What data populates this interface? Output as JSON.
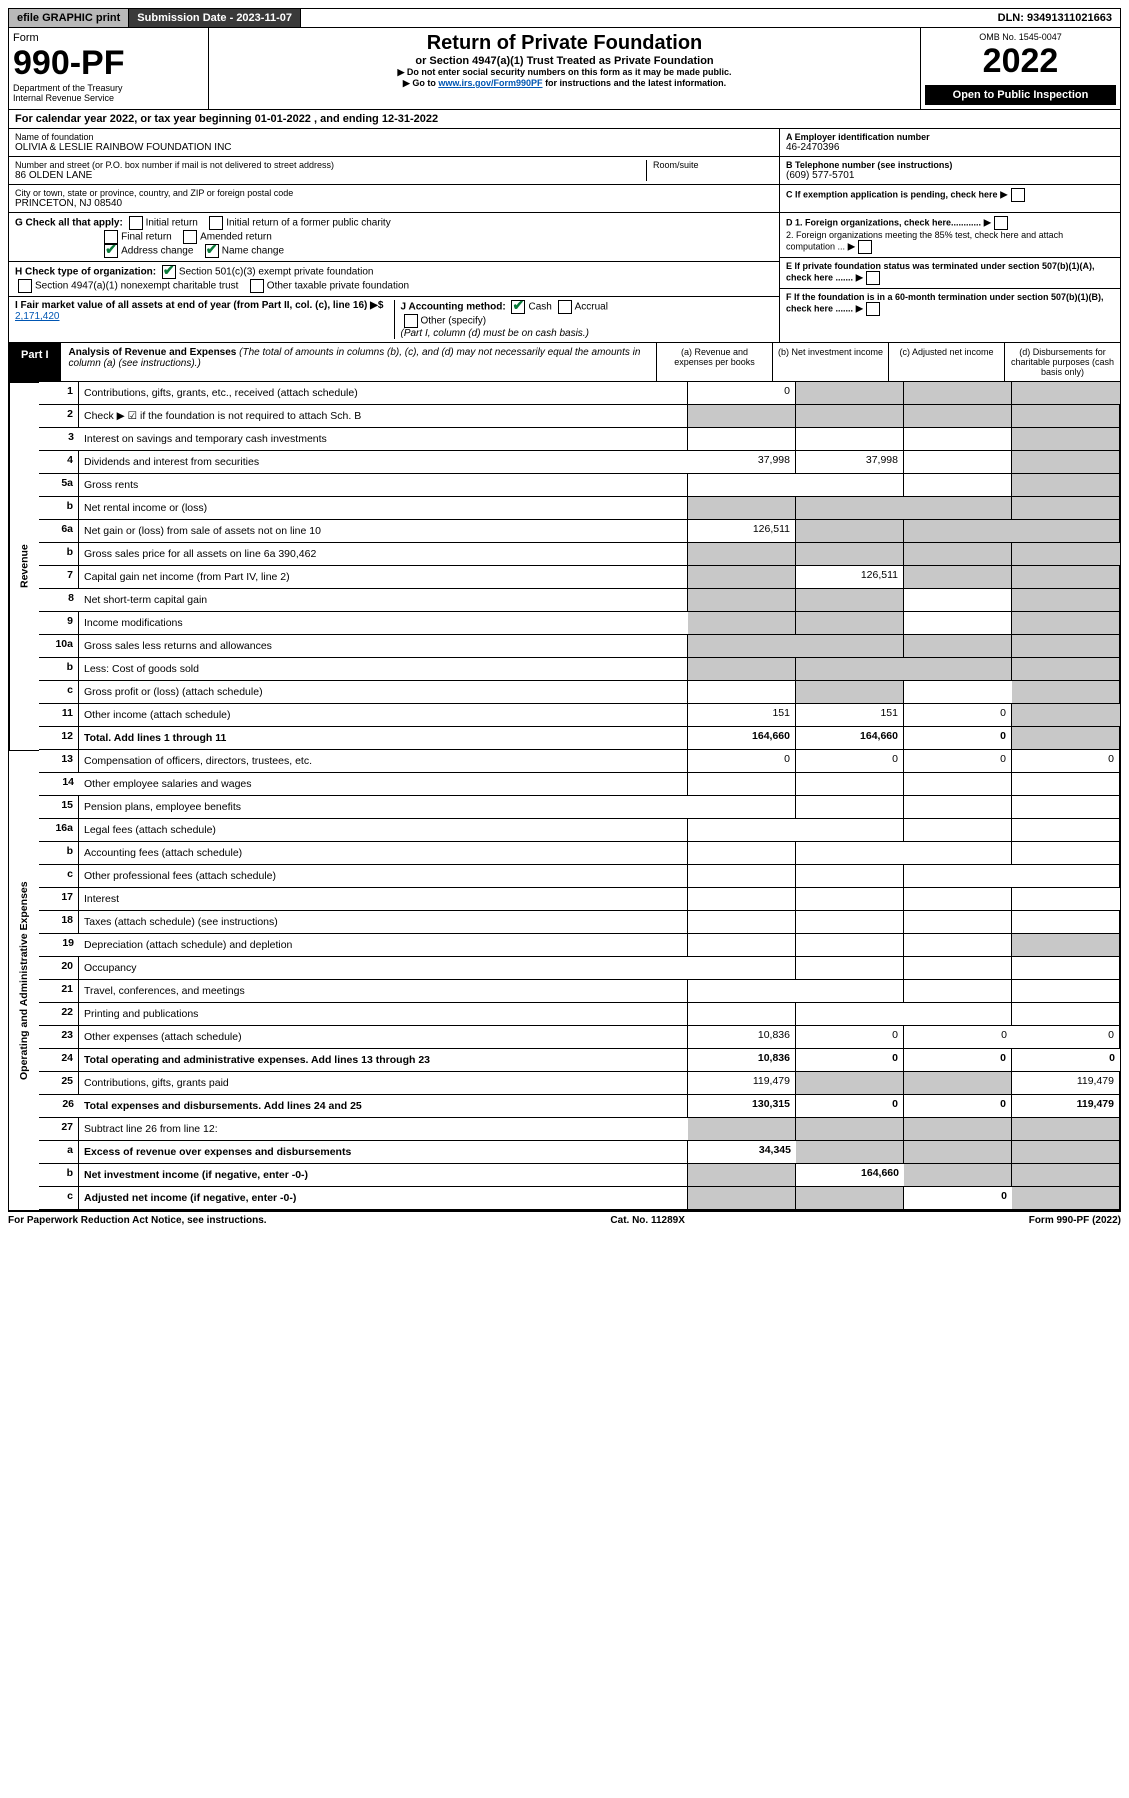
{
  "topbar": {
    "efile": "efile GRAPHIC print",
    "submission_label": "Submission Date - 2023-11-07",
    "dln": "DLN: 93491311021663"
  },
  "header": {
    "form_word": "Form",
    "form_no": "990-PF",
    "dept": "Department of the Treasury",
    "irs": "Internal Revenue Service",
    "title": "Return of Private Foundation",
    "subtitle": "or Section 4947(a)(1) Trust Treated as Private Foundation",
    "note1": "▶ Do not enter social security numbers on this form as it may be made public.",
    "note2_pre": "▶ Go to ",
    "note2_link": "www.irs.gov/Form990PF",
    "note2_post": " for instructions and the latest information.",
    "omb": "OMB No. 1545-0047",
    "year": "2022",
    "open": "Open to Public Inspection"
  },
  "calendar": {
    "text_pre": "For calendar year 2022, or tax year beginning ",
    "begin": "01-01-2022",
    "mid": " , and ending ",
    "end": "12-31-2022"
  },
  "identity": {
    "name_label": "Name of foundation",
    "name": "OLIVIA & LESLIE RAINBOW FOUNDATION INC",
    "addr_label": "Number and street (or P.O. box number if mail is not delivered to street address)",
    "addr": "86 OLDEN LANE",
    "room_label": "Room/suite",
    "city_label": "City or town, state or province, country, and ZIP or foreign postal code",
    "city": "PRINCETON, NJ  08540",
    "ein_label": "A Employer identification number",
    "ein": "46-2470396",
    "phone_label": "B Telephone number (see instructions)",
    "phone": "(609) 577-5701",
    "c_label": "C If exemption application is pending, check here",
    "d1": "D 1. Foreign organizations, check here............",
    "d2": "2. Foreign organizations meeting the 85% test, check here and attach computation ...",
    "e_label": "E If private foundation status was terminated under section 507(b)(1)(A), check here .......",
    "f_label": "F If the foundation is in a 60-month termination under section 507(b)(1)(B), check here ......."
  },
  "checks": {
    "g_label": "G Check all that apply:",
    "initial": "Initial return",
    "initial_former": "Initial return of a former public charity",
    "final": "Final return",
    "amended": "Amended return",
    "address": "Address change",
    "name_change": "Name change",
    "h_label": "H Check type of organization:",
    "h_501c3": "Section 501(c)(3) exempt private foundation",
    "h_4947": "Section 4947(a)(1) nonexempt charitable trust",
    "h_other": "Other taxable private foundation",
    "i_label": "I Fair market value of all assets at end of year (from Part II, col. (c), line 16) ▶$ ",
    "i_value": "2,171,420",
    "j_label": "J Accounting method:",
    "j_cash": "Cash",
    "j_accrual": "Accrual",
    "j_other": "Other (specify)",
    "j_note": "(Part I, column (d) must be on cash basis.)"
  },
  "part1": {
    "label": "Part I",
    "title": "Analysis of Revenue and Expenses",
    "desc": "(The total of amounts in columns (b), (c), and (d) may not necessarily equal the amounts in column (a) (see instructions).)",
    "col_a": "(a) Revenue and expenses per books",
    "col_b": "(b) Net investment income",
    "col_c": "(c) Adjusted net income",
    "col_d": "(d) Disbursements for charitable purposes (cash basis only)"
  },
  "sidelabels": {
    "revenue": "Revenue",
    "expenses": "Operating and Administrative Expenses"
  },
  "lines": [
    {
      "no": "1",
      "desc": "Contributions, gifts, grants, etc., received (attach schedule)",
      "a": "0",
      "b": "",
      "c": "",
      "d": "",
      "grey": [
        "b",
        "c",
        "d"
      ]
    },
    {
      "no": "2",
      "desc": "Check ▶ ☑ if the foundation is not required to attach Sch. B",
      "a": "",
      "b": "",
      "c": "",
      "d": "",
      "grey": [
        "a",
        "b",
        "c",
        "d"
      ]
    },
    {
      "no": "3",
      "desc": "Interest on savings and temporary cash investments",
      "a": "",
      "b": "",
      "c": "",
      "d": "",
      "grey": [
        "d"
      ]
    },
    {
      "no": "4",
      "desc": "Dividends and interest from securities",
      "a": "37,998",
      "b": "37,998",
      "c": "",
      "d": "",
      "grey": [
        "d"
      ]
    },
    {
      "no": "5a",
      "desc": "Gross rents",
      "a": "",
      "b": "",
      "c": "",
      "d": "",
      "grey": [
        "d"
      ]
    },
    {
      "no": "b",
      "desc": "Net rental income or (loss)",
      "a": "",
      "b": "",
      "c": "",
      "d": "",
      "grey": [
        "a",
        "b",
        "c",
        "d"
      ]
    },
    {
      "no": "6a",
      "desc": "Net gain or (loss) from sale of assets not on line 10",
      "a": "126,511",
      "b": "",
      "c": "",
      "d": "",
      "grey": [
        "b",
        "c",
        "d"
      ]
    },
    {
      "no": "b",
      "desc": "Gross sales price for all assets on line 6a  390,462",
      "a": "",
      "b": "",
      "c": "",
      "d": "",
      "grey": [
        "a",
        "b",
        "c",
        "d"
      ]
    },
    {
      "no": "7",
      "desc": "Capital gain net income (from Part IV, line 2)",
      "a": "",
      "b": "126,511",
      "c": "",
      "d": "",
      "grey": [
        "a",
        "c",
        "d"
      ]
    },
    {
      "no": "8",
      "desc": "Net short-term capital gain",
      "a": "",
      "b": "",
      "c": "",
      "d": "",
      "grey": [
        "a",
        "b",
        "d"
      ]
    },
    {
      "no": "9",
      "desc": "Income modifications",
      "a": "",
      "b": "",
      "c": "",
      "d": "",
      "grey": [
        "a",
        "b",
        "d"
      ]
    },
    {
      "no": "10a",
      "desc": "Gross sales less returns and allowances",
      "a": "",
      "b": "",
      "c": "",
      "d": "",
      "grey": [
        "a",
        "b",
        "c",
        "d"
      ]
    },
    {
      "no": "b",
      "desc": "Less: Cost of goods sold",
      "a": "",
      "b": "",
      "c": "",
      "d": "",
      "grey": [
        "a",
        "b",
        "c",
        "d"
      ]
    },
    {
      "no": "c",
      "desc": "Gross profit or (loss) (attach schedule)",
      "a": "",
      "b": "",
      "c": "",
      "d": "",
      "grey": [
        "b",
        "d"
      ]
    },
    {
      "no": "11",
      "desc": "Other income (attach schedule)",
      "a": "151",
      "b": "151",
      "c": "0",
      "d": "",
      "grey": [
        "d"
      ]
    },
    {
      "no": "12",
      "desc": "Total. Add lines 1 through 11",
      "a": "164,660",
      "b": "164,660",
      "c": "0",
      "d": "",
      "grey": [
        "d"
      ],
      "bold": true
    },
    {
      "no": "13",
      "desc": "Compensation of officers, directors, trustees, etc.",
      "a": "0",
      "b": "0",
      "c": "0",
      "d": "0"
    },
    {
      "no": "14",
      "desc": "Other employee salaries and wages",
      "a": "",
      "b": "",
      "c": "",
      "d": ""
    },
    {
      "no": "15",
      "desc": "Pension plans, employee benefits",
      "a": "",
      "b": "",
      "c": "",
      "d": ""
    },
    {
      "no": "16a",
      "desc": "Legal fees (attach schedule)",
      "a": "",
      "b": "",
      "c": "",
      "d": ""
    },
    {
      "no": "b",
      "desc": "Accounting fees (attach schedule)",
      "a": "",
      "b": "",
      "c": "",
      "d": ""
    },
    {
      "no": "c",
      "desc": "Other professional fees (attach schedule)",
      "a": "",
      "b": "",
      "c": "",
      "d": ""
    },
    {
      "no": "17",
      "desc": "Interest",
      "a": "",
      "b": "",
      "c": "",
      "d": ""
    },
    {
      "no": "18",
      "desc": "Taxes (attach schedule) (see instructions)",
      "a": "",
      "b": "",
      "c": "",
      "d": ""
    },
    {
      "no": "19",
      "desc": "Depreciation (attach schedule) and depletion",
      "a": "",
      "b": "",
      "c": "",
      "d": "",
      "grey": [
        "d"
      ]
    },
    {
      "no": "20",
      "desc": "Occupancy",
      "a": "",
      "b": "",
      "c": "",
      "d": ""
    },
    {
      "no": "21",
      "desc": "Travel, conferences, and meetings",
      "a": "",
      "b": "",
      "c": "",
      "d": ""
    },
    {
      "no": "22",
      "desc": "Printing and publications",
      "a": "",
      "b": "",
      "c": "",
      "d": ""
    },
    {
      "no": "23",
      "desc": "Other expenses (attach schedule)",
      "a": "10,836",
      "b": "0",
      "c": "0",
      "d": "0"
    },
    {
      "no": "24",
      "desc": "Total operating and administrative expenses. Add lines 13 through 23",
      "a": "10,836",
      "b": "0",
      "c": "0",
      "d": "0",
      "bold": true
    },
    {
      "no": "25",
      "desc": "Contributions, gifts, grants paid",
      "a": "119,479",
      "b": "",
      "c": "",
      "d": "119,479",
      "grey": [
        "b",
        "c"
      ]
    },
    {
      "no": "26",
      "desc": "Total expenses and disbursements. Add lines 24 and 25",
      "a": "130,315",
      "b": "0",
      "c": "0",
      "d": "119,479",
      "bold": true
    },
    {
      "no": "27",
      "desc": "Subtract line 26 from line 12:",
      "a": "",
      "b": "",
      "c": "",
      "d": "",
      "grey": [
        "a",
        "b",
        "c",
        "d"
      ]
    },
    {
      "no": "a",
      "desc": "Excess of revenue over expenses and disbursements",
      "a": "34,345",
      "b": "",
      "c": "",
      "d": "",
      "grey": [
        "b",
        "c",
        "d"
      ],
      "bold": true
    },
    {
      "no": "b",
      "desc": "Net investment income (if negative, enter -0-)",
      "a": "",
      "b": "164,660",
      "c": "",
      "d": "",
      "grey": [
        "a",
        "c",
        "d"
      ],
      "bold": true
    },
    {
      "no": "c",
      "desc": "Adjusted net income (if negative, enter -0-)",
      "a": "",
      "b": "",
      "c": "0",
      "d": "",
      "grey": [
        "a",
        "b",
        "d"
      ],
      "bold": true
    }
  ],
  "footer": {
    "left": "For Paperwork Reduction Act Notice, see instructions.",
    "mid": "Cat. No. 11289X",
    "right": "Form 990-PF (2022)"
  }
}
